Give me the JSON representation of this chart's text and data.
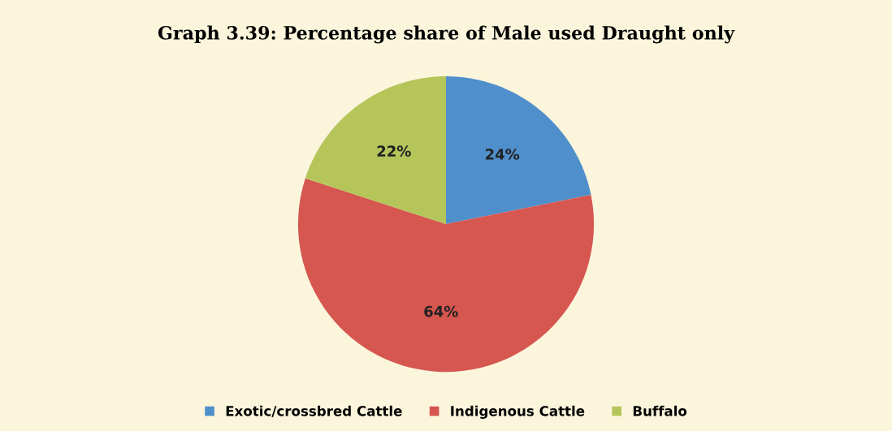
{
  "chart_data": {
    "type": "pie",
    "title": "Graph 3.39: Percentage share of Male used Draught only",
    "categories": [
      "Exotic/crossbred Cattle",
      "Indigenous Cattle",
      "Buffalo"
    ],
    "values": [
      24,
      64,
      22
    ],
    "value_labels": [
      "24%",
      "64%",
      "22%"
    ],
    "colors": [
      "#4f8fcb",
      "#d65650",
      "#b5c55a"
    ],
    "legend": "bottom"
  }
}
